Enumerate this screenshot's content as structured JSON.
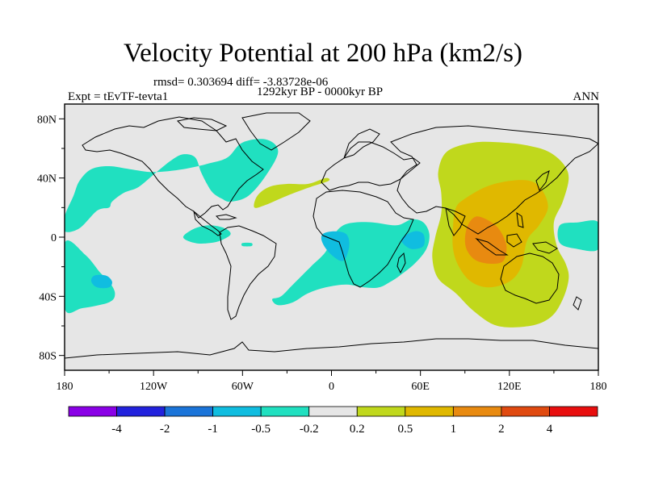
{
  "title": "Velocity Potential at 200 hPa (km2/s)",
  "stats": "rmsd= 0.303694 diff= -3.83728e-06",
  "period": "1292kyr BP - 0000kyr BP",
  "experiment": "Expt = tEvTF-tevta1",
  "season": "ANN",
  "chart_data": {
    "type": "contour-map",
    "projection": "cylindrical-equidistant",
    "lon_range": [
      -180,
      180
    ],
    "lat_range": [
      -90,
      90
    ],
    "x_ticks": [
      {
        "value": -180,
        "label": "180"
      },
      {
        "value": -120,
        "label": "120W"
      },
      {
        "value": -60,
        "label": "60W"
      },
      {
        "value": 0,
        "label": "0"
      },
      {
        "value": 60,
        "label": "60E"
      },
      {
        "value": 120,
        "label": "120E"
      },
      {
        "value": 180,
        "label": "180"
      }
    ],
    "y_ticks": [
      {
        "value": 80,
        "label": "80N"
      },
      {
        "value": 40,
        "label": "40N"
      },
      {
        "value": 0,
        "label": "0"
      },
      {
        "value": -40,
        "label": "40S"
      },
      {
        "value": -80,
        "label": "80S"
      }
    ],
    "levels": [
      {
        "label": "-4",
        "color": "#8a00e6"
      },
      {
        "label": "-2",
        "color": "#2222dd"
      },
      {
        "label": "-1",
        "color": "#1a74d9"
      },
      {
        "label": "-0.5",
        "color": "#10bde0"
      },
      {
        "label": "-0.2",
        "color": "#20e0c0"
      },
      {
        "label": "0.2",
        "color": "#e6e6e6"
      },
      {
        "label": "0.5",
        "color": "#c0d81c"
      },
      {
        "label": "1",
        "color": "#e0b800"
      },
      {
        "label": "2",
        "color": "#e88a10"
      },
      {
        "label": "4",
        "color": "#e04a10"
      },
      {
        "label": "",
        "color": "#e80e0e"
      }
    ],
    "regions": [
      {
        "level": "-0.2 to -0.5",
        "color": "#20e0c0",
        "polygon": [
          [
            -180,
            4
          ],
          [
            -170,
            6
          ],
          [
            -158,
            18
          ],
          [
            -150,
            20
          ],
          [
            -148,
            24
          ],
          [
            -140,
            30
          ],
          [
            -130,
            34
          ],
          [
            -118,
            44
          ],
          [
            -108,
            52
          ],
          [
            -100,
            56
          ],
          [
            -92,
            54
          ],
          [
            -88,
            44
          ],
          [
            -84,
            36
          ],
          [
            -80,
            30
          ],
          [
            -74,
            26
          ],
          [
            -68,
            24
          ],
          [
            -56,
            28
          ],
          [
            -44,
            42
          ],
          [
            -36,
            58
          ],
          [
            -44,
            66
          ],
          [
            -60,
            64
          ],
          [
            -70,
            54
          ],
          [
            -82,
            50
          ],
          [
            -100,
            46
          ],
          [
            -120,
            44
          ],
          [
            -136,
            46
          ],
          [
            -150,
            48
          ],
          [
            -162,
            46
          ],
          [
            -170,
            38
          ],
          [
            -174,
            28
          ],
          [
            -180,
            14
          ]
        ]
      },
      {
        "level": "-0.2 to -0.5",
        "color": "#20e0c0",
        "polygon": [
          [
            -180,
            -4
          ],
          [
            -166,
            -12
          ],
          [
            -156,
            -24
          ],
          [
            -150,
            -30
          ],
          [
            -146,
            -38
          ],
          [
            -150,
            -44
          ],
          [
            -168,
            -48
          ],
          [
            -180,
            -48
          ]
        ]
      },
      {
        "level": "-0.2 to -0.5",
        "color": "#20e0c0",
        "polygon": [
          [
            -34,
            -40
          ],
          [
            -26,
            -32
          ],
          [
            -14,
            -20
          ],
          [
            -4,
            -10
          ],
          [
            2,
            2
          ],
          [
            8,
            8
          ],
          [
            16,
            10
          ],
          [
            28,
            10
          ],
          [
            44,
            8
          ],
          [
            54,
            12
          ],
          [
            62,
            10
          ],
          [
            66,
            2
          ],
          [
            64,
            -8
          ],
          [
            56,
            -18
          ],
          [
            46,
            -26
          ],
          [
            40,
            -30
          ],
          [
            32,
            -34
          ],
          [
            22,
            -34
          ],
          [
            10,
            -32
          ],
          [
            -4,
            -34
          ],
          [
            -16,
            -38
          ],
          [
            -26,
            -44
          ],
          [
            -36,
            -46
          ],
          [
            -40,
            -42
          ]
        ]
      },
      {
        "level": "-0.2 to -0.5",
        "color": "#20e0c0",
        "polygon": [
          [
            -100,
            0
          ],
          [
            -92,
            6
          ],
          [
            -82,
            8
          ],
          [
            -72,
            6
          ],
          [
            -68,
            2
          ],
          [
            -74,
            -2
          ],
          [
            -82,
            -4
          ],
          [
            -92,
            -4
          ]
        ]
      },
      {
        "level": "-0.2 to -0.5",
        "color": "#20e0c0",
        "polygon": [
          [
            -60,
            -4
          ],
          [
            -54,
            -4
          ],
          [
            -54,
            -6
          ],
          [
            -60,
            -6
          ]
        ]
      },
      {
        "level": "-0.2 to -0.5",
        "color": "#20e0c0",
        "polygon": [
          [
            154,
            8
          ],
          [
            166,
            10
          ],
          [
            180,
            10
          ],
          [
            180,
            -8
          ],
          [
            166,
            -8
          ],
          [
            154,
            -4
          ]
        ]
      },
      {
        "level": "-0.5 to -1",
        "color": "#10bde0",
        "polygon": [
          [
            -6,
            2
          ],
          [
            2,
            4
          ],
          [
            10,
            2
          ],
          [
            12,
            -6
          ],
          [
            8,
            -16
          ],
          [
            0,
            -12
          ],
          [
            -6,
            -4
          ]
        ]
      },
      {
        "level": "-0.5 to -1",
        "color": "#10bde0",
        "polygon": [
          [
            48,
            0
          ],
          [
            56,
            4
          ],
          [
            62,
            2
          ],
          [
            62,
            -6
          ],
          [
            54,
            -8
          ],
          [
            48,
            -4
          ]
        ]
      },
      {
        "level": "-0.5 to -1",
        "color": "#10bde0",
        "polygon": [
          [
            -160,
            -26
          ],
          [
            -152,
            -26
          ],
          [
            -148,
            -30
          ],
          [
            -150,
            -34
          ],
          [
            -158,
            -34
          ],
          [
            -162,
            -30
          ]
        ]
      },
      {
        "level": "0.2 to 0.5",
        "color": "#c0d81c",
        "polygon": [
          [
            78,
            58
          ],
          [
            96,
            64
          ],
          [
            116,
            64
          ],
          [
            132,
            62
          ],
          [
            146,
            58
          ],
          [
            156,
            50
          ],
          [
            160,
            40
          ],
          [
            156,
            24
          ],
          [
            150,
            10
          ],
          [
            152,
            -6
          ],
          [
            158,
            -18
          ],
          [
            160,
            -28
          ],
          [
            156,
            -42
          ],
          [
            148,
            -54
          ],
          [
            134,
            -60
          ],
          [
            112,
            -60
          ],
          [
            96,
            -50
          ],
          [
            84,
            -38
          ],
          [
            72,
            -28
          ],
          [
            68,
            -14
          ],
          [
            70,
            0
          ],
          [
            74,
            16
          ],
          [
            74,
            30
          ],
          [
            72,
            44
          ]
        ]
      },
      {
        "level": "0.2 to 0.5",
        "color": "#c0d81c",
        "polygon": [
          [
            -52,
            20
          ],
          [
            -44,
            22
          ],
          [
            -30,
            28
          ],
          [
            -14,
            34
          ],
          [
            -2,
            38
          ],
          [
            -4,
            40
          ],
          [
            -16,
            36
          ],
          [
            -30,
            36
          ],
          [
            -42,
            34
          ],
          [
            -50,
            28
          ]
        ]
      },
      {
        "level": "0.5 to 1",
        "color": "#e0b800",
        "polygon": [
          [
            84,
            20
          ],
          [
            90,
            26
          ],
          [
            104,
            34
          ],
          [
            120,
            38
          ],
          [
            134,
            38
          ],
          [
            142,
            32
          ],
          [
            146,
            20
          ],
          [
            140,
            8
          ],
          [
            132,
            -2
          ],
          [
            128,
            -20
          ],
          [
            120,
            -30
          ],
          [
            106,
            -34
          ],
          [
            94,
            -30
          ],
          [
            86,
            -20
          ],
          [
            82,
            -8
          ],
          [
            82,
            8
          ]
        ]
      },
      {
        "level": "1 to 2",
        "color": "#e88a10",
        "polygon": [
          [
            92,
            8
          ],
          [
            98,
            14
          ],
          [
            108,
            10
          ],
          [
            114,
            4
          ],
          [
            118,
            -6
          ],
          [
            116,
            -16
          ],
          [
            108,
            -18
          ],
          [
            98,
            -16
          ],
          [
            92,
            -10
          ],
          [
            90,
            -2
          ]
        ]
      }
    ]
  }
}
